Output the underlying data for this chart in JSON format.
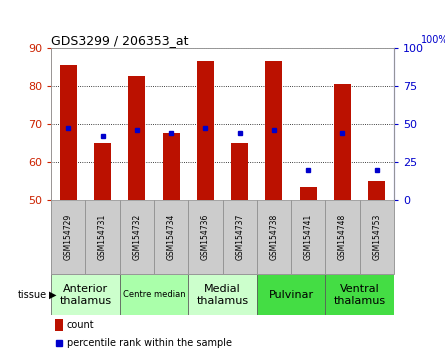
{
  "title": "GDS3299 / 206353_at",
  "samples": [
    "GSM154729",
    "GSM154731",
    "GSM154732",
    "GSM154734",
    "GSM154736",
    "GSM154737",
    "GSM154738",
    "GSM154741",
    "GSM154748",
    "GSM154753"
  ],
  "count_values": [
    85.5,
    65.0,
    82.5,
    67.5,
    86.5,
    65.0,
    86.5,
    53.5,
    80.5,
    55.0
  ],
  "count_base": 50,
  "percentile_values": [
    47,
    42,
    46,
    44,
    47,
    44,
    46,
    20,
    44,
    20
  ],
  "ylim_left": [
    50,
    90
  ],
  "ylim_right": [
    0,
    100
  ],
  "yticks_left": [
    50,
    60,
    70,
    80,
    90
  ],
  "yticks_right": [
    0,
    25,
    50,
    75,
    100
  ],
  "bar_color": "#bb1100",
  "dot_color": "#0000cc",
  "bg_color": "#ffffff",
  "tissue_groups": [
    {
      "label": "Anterior\nthalamus",
      "start": 0,
      "end": 2,
      "color": "#ccffcc",
      "fontsize": 8
    },
    {
      "label": "Centre median",
      "start": 2,
      "end": 4,
      "color": "#aaffaa",
      "fontsize": 6
    },
    {
      "label": "Medial\nthalamus",
      "start": 4,
      "end": 6,
      "color": "#ccffcc",
      "fontsize": 8
    },
    {
      "label": "Pulvinar",
      "start": 6,
      "end": 8,
      "color": "#44dd44",
      "fontsize": 8
    },
    {
      "label": "Ventral\nthalamus",
      "start": 8,
      "end": 10,
      "color": "#44dd44",
      "fontsize": 8
    }
  ],
  "tissue_label": "tissue",
  "legend_count": "count",
  "legend_pct": "percentile rank within the sample",
  "tick_color_left": "#cc2200",
  "tick_color_right": "#0000cc",
  "sample_box_color": "#cccccc",
  "sample_box_edge": "#888888"
}
